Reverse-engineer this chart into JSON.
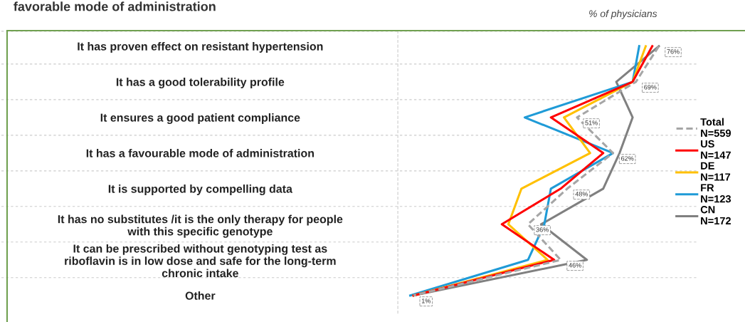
{
  "chart_data": {
    "type": "line",
    "orientation": "horizontal",
    "title": "favorable mode of administration",
    "xlabel": "% of physicians",
    "categories": [
      "It has proven effect on resistant hypertension",
      "It has a good tolerability profile",
      "It ensures a good patient compliance",
      "It has a favourable mode of administration",
      "It is supported by compelling data",
      "It has no substitutes /it is the only therapy for people\nwith this specific genotype",
      "It can be prescribed without genotyping test as\nriboflavin is in low dose and safe for the long-term\nchronic intake",
      "Other"
    ],
    "tick_labels": "y",
    "grid": "y",
    "legend": "right",
    "marker": "none",
    "series": [
      {
        "name": "Total\nN=559",
        "color": "#a6a6a6",
        "line_style": "dashed",
        "values": [
          76,
          69,
          51,
          62,
          48,
          36,
          46,
          1
        ],
        "value_labels": [
          "76%",
          "69%",
          "51%",
          "62%",
          "48%",
          "36%",
          "46%",
          "1%"
        ]
      },
      {
        "name": "US\nN=147",
        "color": "#ff0000",
        "line_style": "solid",
        "values": [
          74,
          68,
          43,
          59,
          46,
          28,
          44,
          1
        ]
      },
      {
        "name": "DE\nN=117",
        "color": "#ffc000",
        "line_style": "solid",
        "values": [
          72,
          68,
          47,
          55,
          34,
          30,
          42,
          1
        ]
      },
      {
        "name": "FR\nN=123",
        "color": "#1f9bd7",
        "line_style": "solid",
        "values": [
          70,
          68,
          35,
          62,
          43,
          41,
          36,
          0
        ]
      },
      {
        "name": "CN\nN=172",
        "color": "#808080",
        "line_style": "solid",
        "values": [
          76,
          63,
          68,
          64,
          59,
          40,
          54,
          1
        ]
      }
    ]
  }
}
